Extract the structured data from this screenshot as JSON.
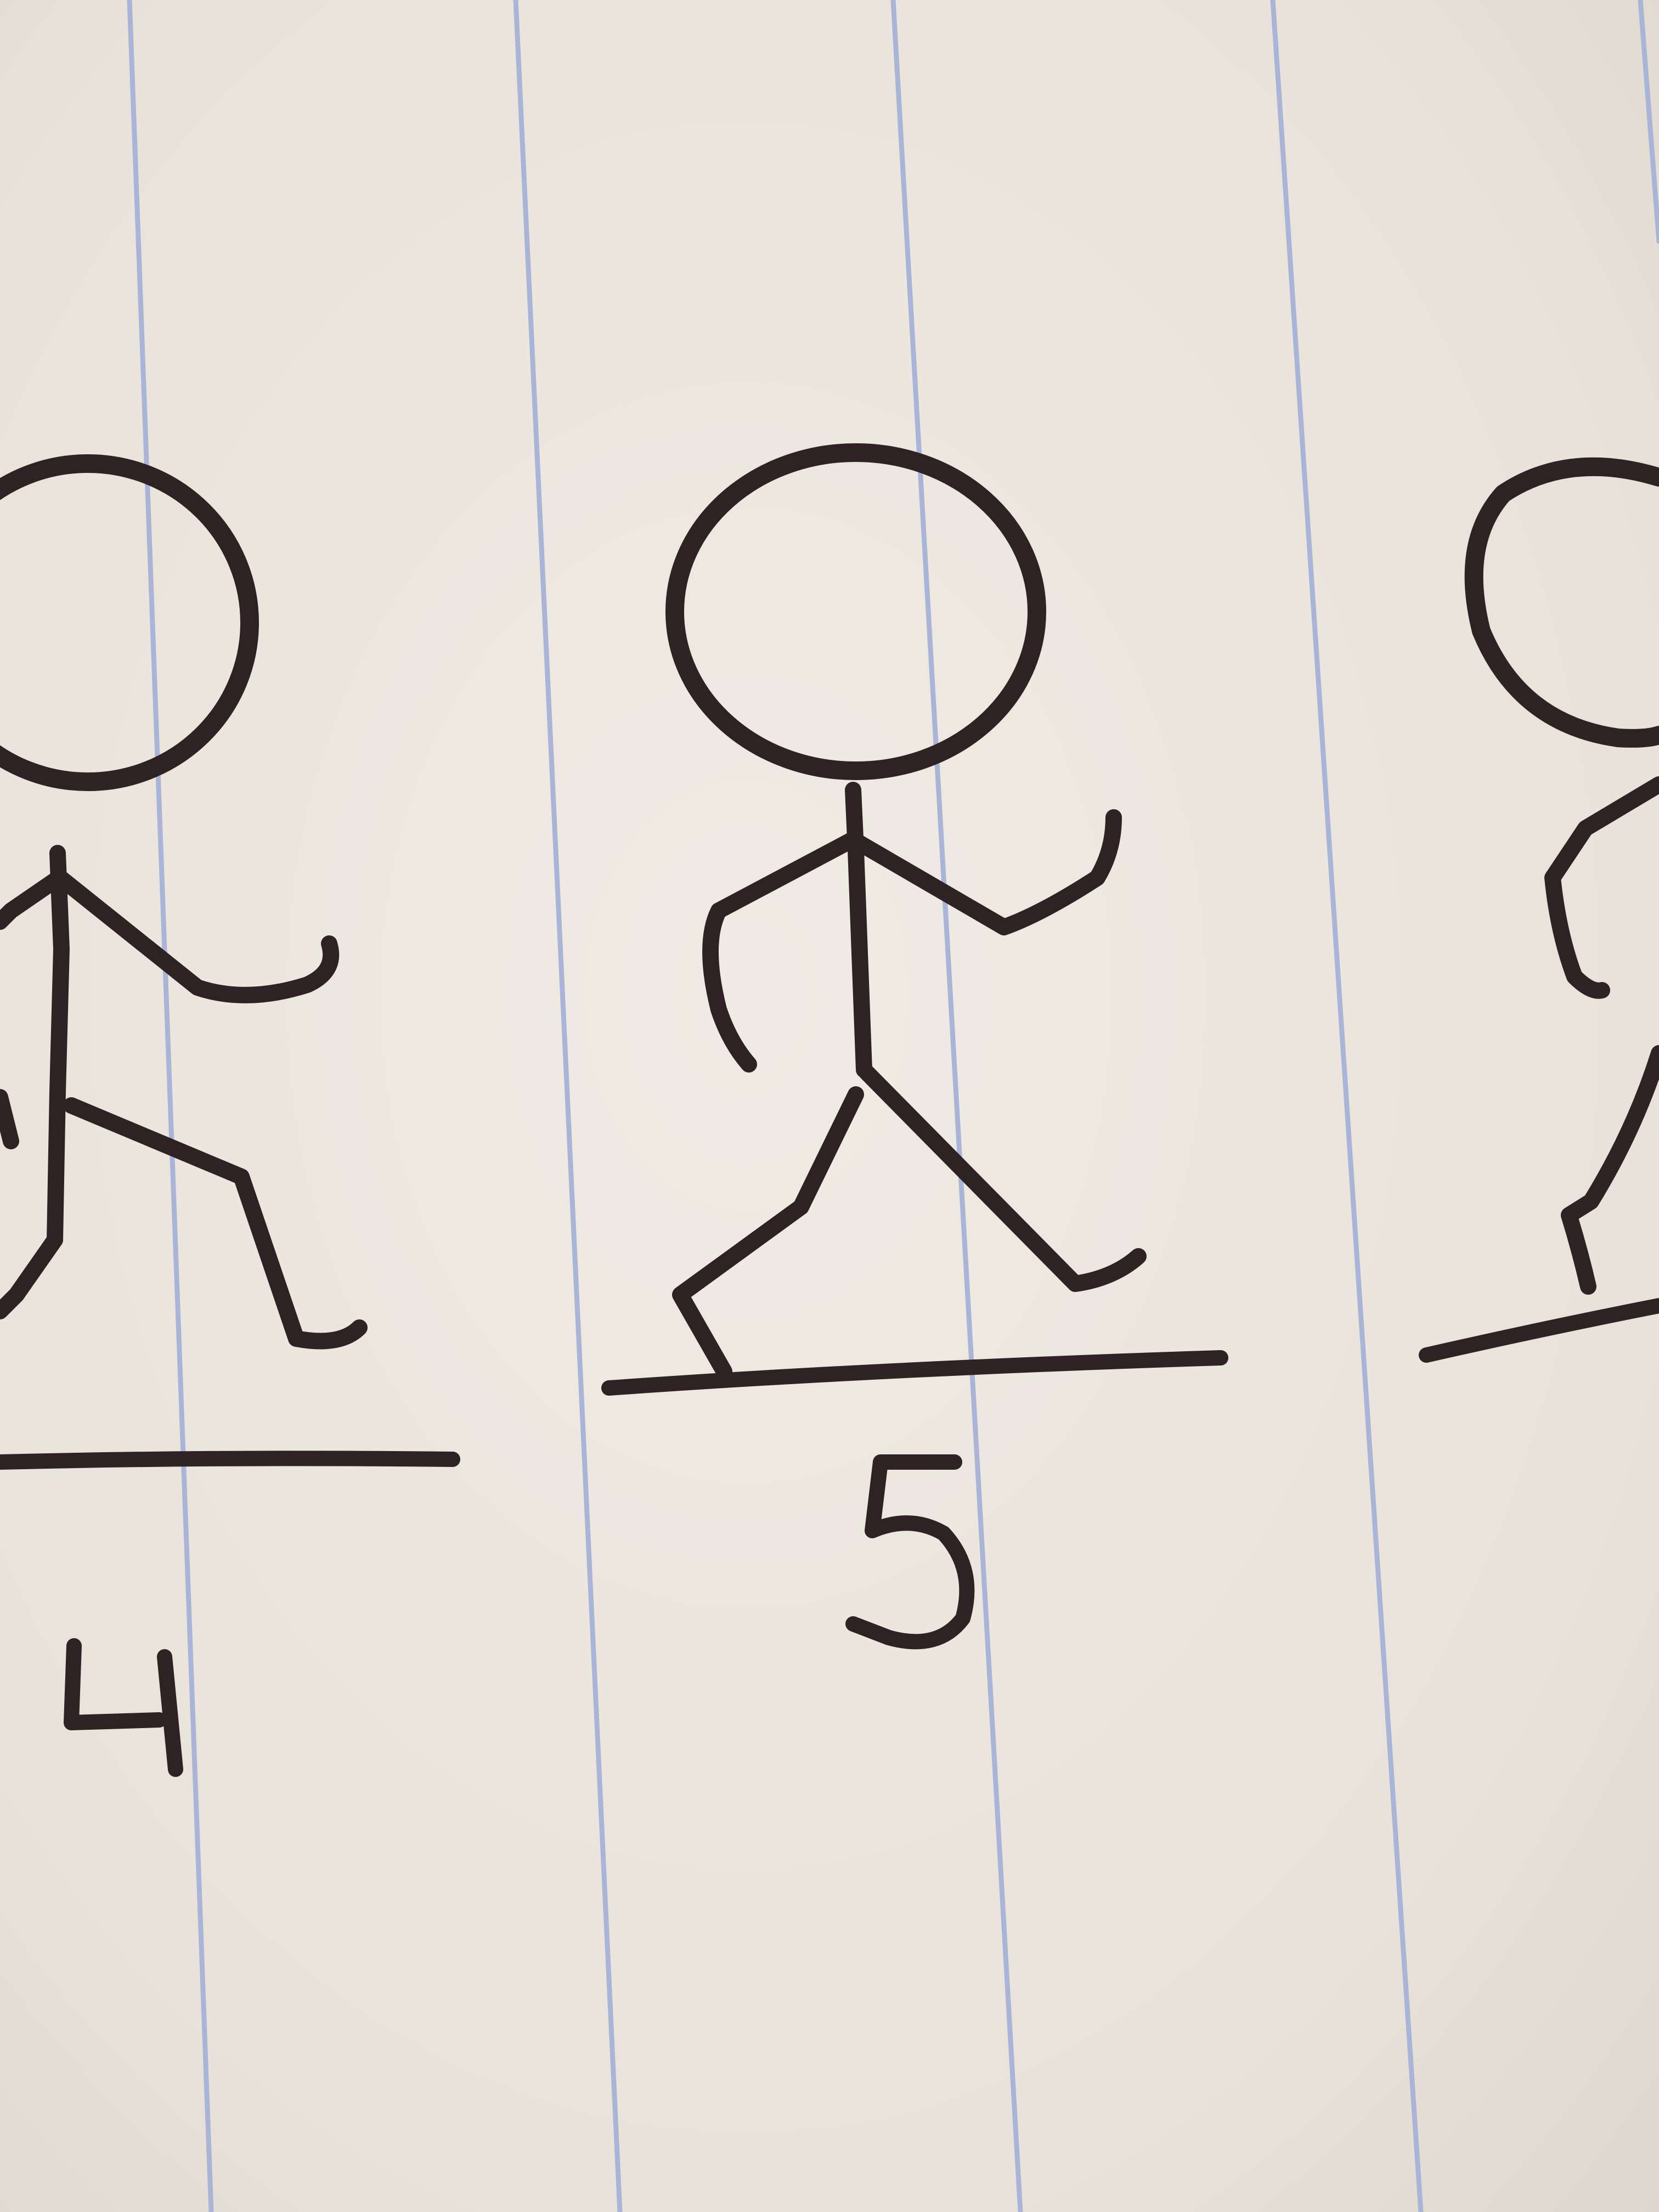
{
  "photo": {
    "paper_color": "#ece7e0",
    "ink_color": "#2e2224",
    "rule_color": "#a9b4d6"
  },
  "figures": [
    {
      "name": "figure-4",
      "frame_number": "4"
    },
    {
      "name": "figure-5",
      "frame_number": "5"
    },
    {
      "name": "figure-6-partial",
      "frame_number": ""
    }
  ]
}
